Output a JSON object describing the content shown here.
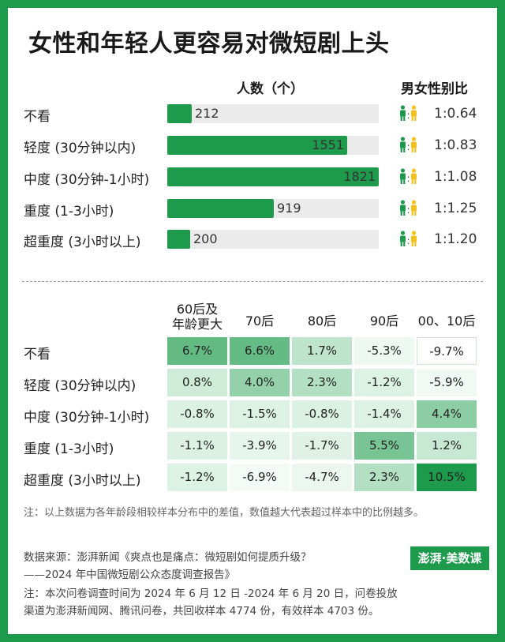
{
  "title": "女性和年轻人更容易对微短剧上头",
  "colors": {
    "accent": "#1e9a4c",
    "female": "#f2c21a",
    "male": "#1e9a4c"
  },
  "chart_data": [
    {
      "type": "bar",
      "header": "人数（个）",
      "categories": [
        "不看",
        "轻度 (30分钟以内)",
        "中度 (30分钟-1小时)",
        "重度 (1-3小时)",
        "超重度 (3小时以上)"
      ],
      "values": [
        212,
        1551,
        1821,
        919,
        200
      ],
      "value_labels": [
        "212",
        "1551",
        "1821",
        "919",
        "200"
      ],
      "xlim": [
        0,
        1821
      ],
      "ratio_header": "男女性别比",
      "ratios": [
        "1:0.64",
        "1:0.83",
        "1:1.08",
        "1:1.25",
        "1:1.20"
      ],
      "ratio_values": [
        0.64,
        0.83,
        1.08,
        1.25,
        1.2
      ]
    },
    {
      "type": "heatmap",
      "columns": [
        "60后及年龄更大",
        "70后",
        "80后",
        "90后",
        "00、10后"
      ],
      "column_labels": [
        [
          "60后及",
          "年龄更大"
        ],
        [
          "70后"
        ],
        [
          "80后"
        ],
        [
          "90后"
        ],
        [
          "00、10后"
        ]
      ],
      "rows": [
        "不看",
        "轻度 (30分钟以内)",
        "中度 (30分钟-1小时)",
        "重度 (1-3小时)",
        "超重度 (3小时以上)"
      ],
      "values": [
        [
          6.7,
          6.6,
          1.7,
          -5.3,
          -9.7
        ],
        [
          0.8,
          4.0,
          2.3,
          -1.2,
          -5.9
        ],
        [
          -0.8,
          -1.5,
          -0.8,
          -1.4,
          4.4
        ],
        [
          -1.1,
          -3.9,
          -1.7,
          5.5,
          1.2
        ],
        [
          -1.2,
          -6.9,
          -4.7,
          2.3,
          10.5
        ]
      ],
      "labels": [
        [
          "6.7%",
          "6.6%",
          "1.7%",
          "-5.3%",
          "-9.7%"
        ],
        [
          "0.8%",
          "4.0%",
          "2.3%",
          "-1.2%",
          "-5.9%"
        ],
        [
          "-0.8%",
          "-1.5%",
          "-0.8%",
          "-1.4%",
          "4.4%"
        ],
        [
          "-1.1%",
          "-3.9%",
          "-1.7%",
          "5.5%",
          "1.2%"
        ],
        [
          "-1.2%",
          "-6.9%",
          "-4.7%",
          "2.3%",
          "10.5%"
        ]
      ]
    }
  ],
  "note": "注：以上数据为各年龄段相较样本分布中的差值，数值越大代表超过样本中的比例越多。",
  "footer": {
    "source_line1": "数据来源：澎湃新闻《爽点也是痛点：微短剧如何提质升级？",
    "source_line2": "——2024 年中国微短剧公众态度调查报告》",
    "note_line1": "注：本次问卷调查时间为 2024 年 6 月 12 日 -2024 年 6 月 20 日，问卷投放",
    "note_line2": "渠道为澎湃新闻网、腾讯问卷，共回收样本 4774 份，有效样本 4703 份。"
  },
  "logo": "澎湃·美数课"
}
